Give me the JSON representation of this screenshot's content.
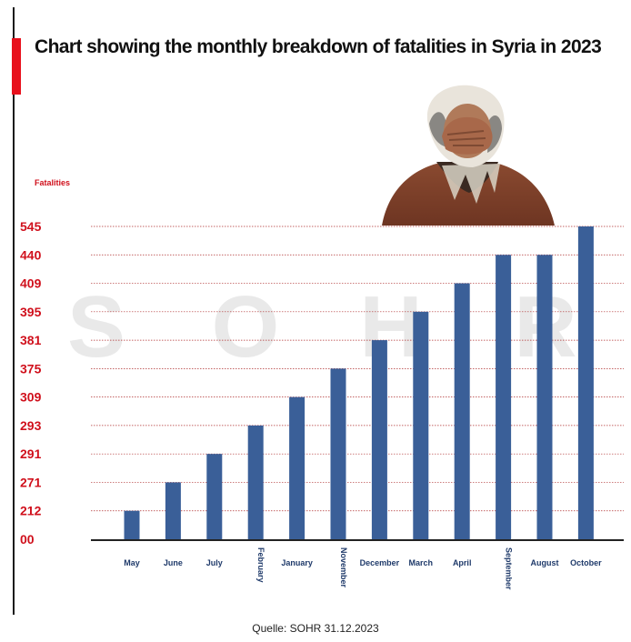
{
  "header": {
    "title": "Chart showing the monthly breakdown of fatalities in Syria in 2023",
    "source": "Quelle: SOHR 31.12.2023"
  },
  "watermark": [
    "S",
    "O",
    "H",
    "R"
  ],
  "colors": {
    "bar": "#3a5f98",
    "accent": "#e8101c",
    "tick": "#d0101c",
    "grid": "#b03030"
  },
  "photo": {
    "icon": "grieving-person-photo"
  },
  "chart_data": {
    "type": "bar",
    "title": "Chart showing the monthly breakdown of fatalities in Syria in 2023",
    "ylabel": "Fatalities",
    "xlabel": "",
    "categories": [
      "May",
      "June",
      "July",
      "February",
      "January",
      "November",
      "December",
      "March",
      "April",
      "September",
      "August",
      "October"
    ],
    "values": [
      212,
      271,
      291,
      293,
      309,
      375,
      381,
      395,
      409,
      440,
      440,
      545
    ],
    "yticks": [
      "00",
      "212",
      "271",
      "291",
      "293",
      "309",
      "375",
      "381",
      "395",
      "409",
      "440",
      "545"
    ],
    "rotated_labels": [
      "February",
      "November",
      "September"
    ],
    "grid": true
  }
}
